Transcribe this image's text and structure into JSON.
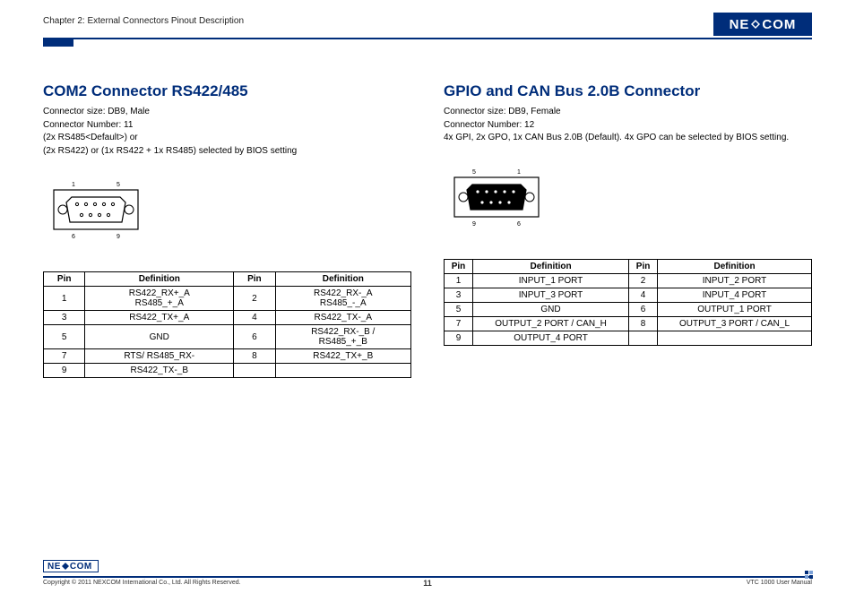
{
  "header": {
    "chapter": "Chapter 2: External Connectors Pinout Description",
    "logo_text": "NE COM"
  },
  "left": {
    "title": "COM2 Connector RS422/485",
    "desc_line1": "Connector size: DB9, Male",
    "desc_line2": "Connector Number: 11",
    "desc_line3": "(2x RS485<Default>) or",
    "desc_line4": "(2x RS422) or (1x RS422 + 1x RS485) selected by BIOS setting",
    "diagram": {
      "top_left": "1",
      "top_right": "5",
      "bot_left": "6",
      "bot_right": "9",
      "type": "male"
    },
    "table": {
      "headers": [
        "Pin",
        "Definition",
        "Pin",
        "Definition"
      ],
      "rows": [
        [
          "1",
          "RS422_RX+_A\nRS485_+_A",
          "2",
          "RS422_RX-_A\nRS485_-_A"
        ],
        [
          "3",
          "RS422_TX+_A",
          "4",
          "RS422_TX-_A"
        ],
        [
          "5",
          "GND",
          "6",
          "RS422_RX-_B /\nRS485_+_B"
        ],
        [
          "7",
          "RTS/ RS485_RX-",
          "8",
          "RS422_TX+_B"
        ],
        [
          "9",
          "RS422_TX-_B",
          "",
          ""
        ]
      ]
    }
  },
  "right": {
    "title": "GPIO and CAN Bus 2.0B Connector",
    "desc_line1": "Connector size: DB9, Female",
    "desc_line2": "Connector Number: 12",
    "desc_line3": "4x GPI, 2x GPO, 1x CAN Bus 2.0B (Default). 4x GPO can be selected by BIOS setting.",
    "diagram": {
      "top_left": "5",
      "top_right": "1",
      "bot_left": "9",
      "bot_right": "6",
      "type": "female"
    },
    "table": {
      "headers": [
        "Pin",
        "Definition",
        "Pin",
        "Definition"
      ],
      "rows": [
        [
          "1",
          "INPUT_1 PORT",
          "2",
          "INPUT_2 PORT"
        ],
        [
          "3",
          "INPUT_3 PORT",
          "4",
          "INPUT_4 PORT"
        ],
        [
          "5",
          "GND",
          "6",
          "OUTPUT_1 PORT"
        ],
        [
          "7",
          "OUTPUT_2 PORT / CAN_H",
          "8",
          "OUTPUT_3 PORT / CAN_L"
        ],
        [
          "9",
          "OUTPUT_4 PORT",
          "",
          ""
        ]
      ]
    }
  },
  "footer": {
    "copyright": "Copyright © 2011 NEXCOM International Co., Ltd. All Rights Reserved.",
    "page": "11",
    "manual": "VTC 1000 User Manual",
    "logo_text": "NE COM"
  },
  "colors": {
    "brand": "#002d7a"
  }
}
